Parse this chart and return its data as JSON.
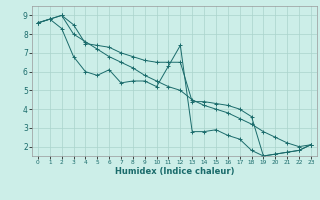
{
  "xlabel": "Humidex (Indice chaleur)",
  "xlim": [
    -0.5,
    23.5
  ],
  "ylim": [
    1.5,
    9.5
  ],
  "yticks": [
    2,
    3,
    4,
    5,
    6,
    7,
    8,
    9
  ],
  "xticks": [
    0,
    1,
    2,
    3,
    4,
    5,
    6,
    7,
    8,
    9,
    10,
    11,
    12,
    13,
    14,
    15,
    16,
    17,
    18,
    19,
    20,
    21,
    22,
    23
  ],
  "background_color": "#cceee8",
  "grid_color": "#aad4cc",
  "line_color": "#1a6b6b",
  "line1_x": [
    0,
    1,
    2,
    3,
    4,
    5,
    6,
    7,
    8,
    9,
    10,
    11,
    12,
    13,
    14,
    15,
    16,
    17,
    18,
    19,
    20,
    21,
    22,
    23
  ],
  "line1_y": [
    8.6,
    8.8,
    9.0,
    8.5,
    7.5,
    7.4,
    7.3,
    7.0,
    6.8,
    6.6,
    6.5,
    6.5,
    6.5,
    4.4,
    4.4,
    4.3,
    4.2,
    4.0,
    3.6,
    1.5,
    1.6,
    1.7,
    1.8,
    2.1
  ],
  "line2_x": [
    0,
    1,
    2,
    3,
    4,
    5,
    6,
    7,
    8,
    9,
    10,
    11,
    12,
    13,
    14,
    15,
    16,
    17,
    18,
    19,
    20,
    21,
    22,
    23
  ],
  "line2_y": [
    8.6,
    8.8,
    8.3,
    6.8,
    6.0,
    5.8,
    6.1,
    5.4,
    5.5,
    5.5,
    5.2,
    6.3,
    7.4,
    2.8,
    2.8,
    2.9,
    2.6,
    2.4,
    1.8,
    1.5,
    1.6,
    1.7,
    1.8,
    2.1
  ],
  "line3_x": [
    0,
    1,
    2,
    3,
    4,
    5,
    6,
    7,
    8,
    9,
    10,
    11,
    12,
    13,
    14,
    15,
    16,
    17,
    18,
    19,
    20,
    21,
    22,
    23
  ],
  "line3_y": [
    8.6,
    8.8,
    9.0,
    8.0,
    7.6,
    7.2,
    6.8,
    6.5,
    6.2,
    5.8,
    5.5,
    5.2,
    5.0,
    4.5,
    4.2,
    4.0,
    3.8,
    3.5,
    3.2,
    2.8,
    2.5,
    2.2,
    2.0,
    2.1
  ]
}
